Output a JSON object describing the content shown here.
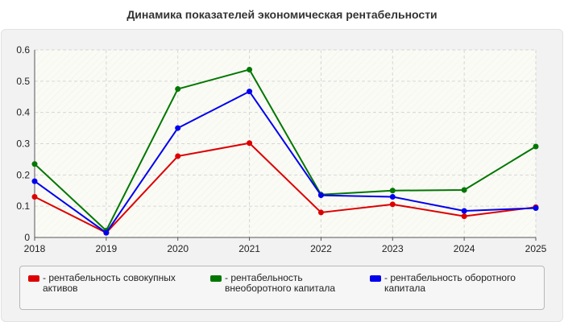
{
  "chart_data": {
    "type": "line",
    "title": "Динамика показателей экономическая рентабельности",
    "x": [
      "2018",
      "2019",
      "2020",
      "2021",
      "2022",
      "2023",
      "2024",
      "2025"
    ],
    "ylim": [
      0,
      0.6
    ],
    "yticks": [
      "0",
      "0.1",
      "0.2",
      "0.3",
      "0.4",
      "0.5",
      "0.6"
    ],
    "grid": true,
    "legend": "bottom",
    "series": [
      {
        "name": "- рентабельность совокупных активов",
        "color": "#dd0000",
        "values": [
          0.13,
          0.015,
          0.26,
          0.302,
          0.08,
          0.106,
          0.068,
          0.097
        ]
      },
      {
        "name": "- рентабельность внеоборотного капитала",
        "color": "#007700",
        "values": [
          0.235,
          0.022,
          0.475,
          0.537,
          0.137,
          0.15,
          0.152,
          0.291
        ]
      },
      {
        "name": "- рентабельность оборотного капитала",
        "color": "#0000ee",
        "values": [
          0.18,
          0.015,
          0.35,
          0.467,
          0.135,
          0.13,
          0.085,
          0.094
        ]
      }
    ]
  }
}
